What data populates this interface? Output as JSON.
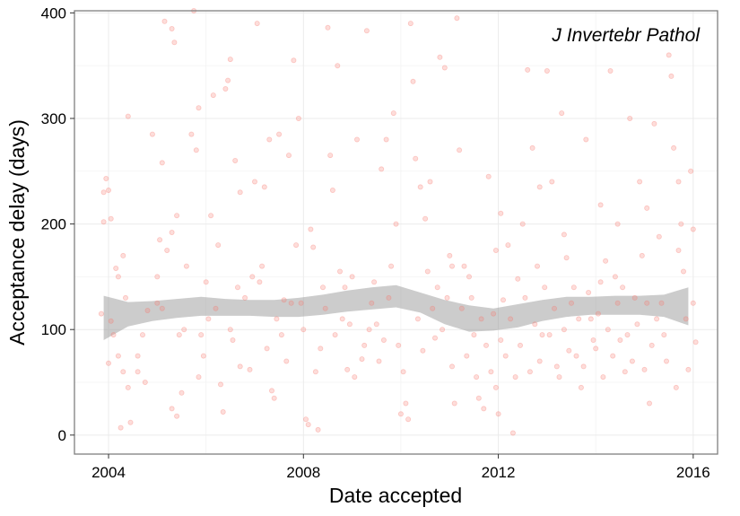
{
  "chart_data": {
    "type": "scatter",
    "title": "",
    "annotation": "J Invertebr Pathol",
    "xlabel": "Date accepted",
    "ylabel": "Acceptance delay (days)",
    "x_axis_kind": "date-year",
    "xlim": [
      2003.3,
      2016.5
    ],
    "ylim": [
      -18,
      402
    ],
    "xticks": [
      2004,
      2008,
      2012,
      2016
    ],
    "yticks": [
      0,
      100,
      200,
      300,
      400
    ],
    "grid": true,
    "point_color": "#F8766D",
    "point_opacity": 0.25,
    "band_color": "#999999",
    "points": [
      [
        2003.9,
        230
      ],
      [
        2003.95,
        243
      ],
      [
        2004.05,
        205
      ],
      [
        2003.9,
        202
      ],
      [
        2004.0,
        232
      ],
      [
        2004.15,
        158
      ],
      [
        2004.2,
        150
      ],
      [
        2004.3,
        170
      ],
      [
        2004.4,
        302
      ],
      [
        2004.05,
        108
      ],
      [
        2003.85,
        115
      ],
      [
        2004.1,
        95
      ],
      [
        2004.2,
        75
      ],
      [
        2004.0,
        68
      ],
      [
        2004.3,
        60
      ],
      [
        2004.4,
        45
      ],
      [
        2004.25,
        7
      ],
      [
        2004.45,
        12
      ],
      [
        2004.6,
        60
      ],
      [
        2004.7,
        95
      ],
      [
        2004.8,
        118
      ],
      [
        2004.9,
        285
      ],
      [
        2005.0,
        150
      ],
      [
        2005.05,
        185
      ],
      [
        2005.1,
        258
      ],
      [
        2005.2,
        175
      ],
      [
        2005.3,
        192
      ],
      [
        2005.15,
        392
      ],
      [
        2005.3,
        385
      ],
      [
        2005.35,
        372
      ],
      [
        2005.4,
        208
      ],
      [
        2005.45,
        95
      ],
      [
        2005.3,
        25
      ],
      [
        2005.4,
        18
      ],
      [
        2005.5,
        40
      ],
      [
        2005.1,
        120
      ],
      [
        2005.0,
        125
      ],
      [
        2005.6,
        160
      ],
      [
        2005.7,
        285
      ],
      [
        2005.75,
        402
      ],
      [
        2005.8,
        270
      ],
      [
        2005.85,
        310
      ],
      [
        2005.9,
        95
      ],
      [
        2005.95,
        75
      ],
      [
        2006.0,
        145
      ],
      [
        2006.1,
        208
      ],
      [
        2006.15,
        322
      ],
      [
        2006.2,
        120
      ],
      [
        2006.3,
        48
      ],
      [
        2006.35,
        22
      ],
      [
        2006.4,
        328
      ],
      [
        2006.45,
        336
      ],
      [
        2006.5,
        356
      ],
      [
        2006.6,
        260
      ],
      [
        2006.7,
        230
      ],
      [
        2006.8,
        130
      ],
      [
        2006.5,
        100
      ],
      [
        2006.7,
        65
      ],
      [
        2006.9,
        62
      ],
      [
        2007.0,
        240
      ],
      [
        2007.05,
        390
      ],
      [
        2007.1,
        145
      ],
      [
        2007.15,
        160
      ],
      [
        2007.2,
        235
      ],
      [
        2007.3,
        280
      ],
      [
        2007.25,
        82
      ],
      [
        2007.35,
        42
      ],
      [
        2007.4,
        35
      ],
      [
        2007.5,
        285
      ],
      [
        2007.6,
        128
      ],
      [
        2007.7,
        265
      ],
      [
        2007.8,
        355
      ],
      [
        2007.9,
        300
      ],
      [
        2007.85,
        180
      ],
      [
        2007.95,
        125
      ],
      [
        2008.0,
        100
      ],
      [
        2008.05,
        15
      ],
      [
        2008.1,
        10
      ],
      [
        2008.15,
        195
      ],
      [
        2008.2,
        178
      ],
      [
        2008.3,
        5
      ],
      [
        2008.35,
        82
      ],
      [
        2008.4,
        140
      ],
      [
        2008.5,
        386
      ],
      [
        2008.55,
        265
      ],
      [
        2008.6,
        232
      ],
      [
        2008.7,
        350
      ],
      [
        2008.75,
        155
      ],
      [
        2008.8,
        110
      ],
      [
        2008.9,
        62
      ],
      [
        2009.0,
        150
      ],
      [
        2009.1,
        280
      ],
      [
        2009.2,
        72
      ],
      [
        2009.25,
        85
      ],
      [
        2009.3,
        383
      ],
      [
        2009.4,
        125
      ],
      [
        2009.5,
        105
      ],
      [
        2009.6,
        252
      ],
      [
        2009.7,
        280
      ],
      [
        2009.8,
        160
      ],
      [
        2009.85,
        305
      ],
      [
        2009.9,
        200
      ],
      [
        2010.0,
        20
      ],
      [
        2010.05,
        60
      ],
      [
        2010.1,
        30
      ],
      [
        2010.15,
        15
      ],
      [
        2010.2,
        390
      ],
      [
        2010.25,
        335
      ],
      [
        2010.3,
        262
      ],
      [
        2010.4,
        235
      ],
      [
        2010.5,
        205
      ],
      [
        2010.55,
        155
      ],
      [
        2010.6,
        240
      ],
      [
        2010.65,
        120
      ],
      [
        2010.7,
        92
      ],
      [
        2010.8,
        358
      ],
      [
        2010.9,
        348
      ],
      [
        2011.0,
        170
      ],
      [
        2011.05,
        65
      ],
      [
        2011.1,
        30
      ],
      [
        2011.15,
        395
      ],
      [
        2011.2,
        270
      ],
      [
        2011.3,
        160
      ],
      [
        2011.4,
        150
      ],
      [
        2011.5,
        95
      ],
      [
        2011.6,
        35
      ],
      [
        2011.7,
        25
      ],
      [
        2011.8,
        245
      ],
      [
        2011.9,
        115
      ],
      [
        2011.95,
        45
      ],
      [
        2012.0,
        20
      ],
      [
        2012.05,
        90
      ],
      [
        2012.1,
        128
      ],
      [
        2012.2,
        180
      ],
      [
        2012.3,
        2
      ],
      [
        2012.4,
        148
      ],
      [
        2012.5,
        200
      ],
      [
        2012.6,
        346
      ],
      [
        2012.7,
        272
      ],
      [
        2012.8,
        160
      ],
      [
        2012.9,
        95
      ],
      [
        2013.0,
        345
      ],
      [
        2013.1,
        240
      ],
      [
        2013.2,
        65
      ],
      [
        2013.3,
        305
      ],
      [
        2013.4,
        168
      ],
      [
        2013.5,
        125
      ],
      [
        2013.6,
        75
      ],
      [
        2013.7,
        45
      ],
      [
        2013.8,
        280
      ],
      [
        2013.9,
        110
      ],
      [
        2014.0,
        82
      ],
      [
        2014.1,
        218
      ],
      [
        2014.2,
        165
      ],
      [
        2014.3,
        345
      ],
      [
        2014.4,
        150
      ],
      [
        2014.5,
        90
      ],
      [
        2014.6,
        60
      ],
      [
        2014.7,
        300
      ],
      [
        2014.8,
        130
      ],
      [
        2014.9,
        240
      ],
      [
        2015.0,
        62
      ],
      [
        2015.1,
        30
      ],
      [
        2015.2,
        295
      ],
      [
        2015.3,
        188
      ],
      [
        2015.4,
        95
      ],
      [
        2015.5,
        360
      ],
      [
        2015.55,
        340
      ],
      [
        2015.6,
        272
      ],
      [
        2015.7,
        240
      ],
      [
        2015.8,
        155
      ],
      [
        2015.85,
        110
      ],
      [
        2015.9,
        62
      ],
      [
        2015.95,
        250
      ],
      [
        2016.0,
        195
      ],
      [
        2016.05,
        88
      ],
      [
        2015.75,
        200
      ],
      [
        2015.65,
        45
      ],
      [
        2015.35,
        125
      ],
      [
        2014.95,
        170
      ],
      [
        2004.6,
        75
      ],
      [
        2004.75,
        50
      ],
      [
        2005.55,
        100
      ],
      [
        2005.85,
        55
      ],
      [
        2006.25,
        180
      ],
      [
        2006.55,
        90
      ],
      [
        2006.95,
        150
      ],
      [
        2007.45,
        110
      ],
      [
        2007.65,
        70
      ],
      [
        2008.25,
        60
      ],
      [
        2008.45,
        120
      ],
      [
        2008.65,
        95
      ],
      [
        2008.85,
        140
      ],
      [
        2009.05,
        55
      ],
      [
        2009.35,
        100
      ],
      [
        2009.55,
        70
      ],
      [
        2009.75,
        130
      ],
      [
        2009.95,
        85
      ],
      [
        2010.35,
        110
      ],
      [
        2010.45,
        80
      ],
      [
        2010.75,
        140
      ],
      [
        2010.85,
        100
      ],
      [
        2011.25,
        120
      ],
      [
        2011.35,
        75
      ],
      [
        2011.45,
        130
      ],
      [
        2011.55,
        55
      ],
      [
        2011.65,
        110
      ],
      [
        2011.75,
        85
      ],
      [
        2011.85,
        60
      ],
      [
        2012.15,
        75
      ],
      [
        2012.25,
        110
      ],
      [
        2012.35,
        55
      ],
      [
        2012.45,
        85
      ],
      [
        2012.55,
        130
      ],
      [
        2012.65,
        60
      ],
      [
        2012.75,
        105
      ],
      [
        2012.85,
        70
      ],
      [
        2012.95,
        140
      ],
      [
        2013.05,
        95
      ],
      [
        2013.15,
        120
      ],
      [
        2013.25,
        55
      ],
      [
        2013.35,
        100
      ],
      [
        2013.45,
        80
      ],
      [
        2013.55,
        140
      ],
      [
        2013.65,
        110
      ],
      [
        2013.75,
        65
      ],
      [
        2013.85,
        135
      ],
      [
        2013.95,
        90
      ],
      [
        2014.05,
        115
      ],
      [
        2014.15,
        55
      ],
      [
        2014.25,
        100
      ],
      [
        2014.35,
        75
      ],
      [
        2014.45,
        125
      ],
      [
        2014.55,
        140
      ],
      [
        2014.65,
        95
      ],
      [
        2014.75,
        70
      ],
      [
        2014.85,
        105
      ],
      [
        2015.05,
        125
      ],
      [
        2015.15,
        85
      ],
      [
        2015.25,
        110
      ],
      [
        2015.45,
        70
      ],
      [
        2016.0,
        125
      ],
      [
        2004.35,
        130
      ],
      [
        2006.05,
        110
      ],
      [
        2006.65,
        140
      ],
      [
        2007.55,
        95
      ],
      [
        2007.75,
        125
      ],
      [
        2008.95,
        105
      ],
      [
        2009.45,
        145
      ],
      [
        2009.65,
        90
      ],
      [
        2010.95,
        130
      ],
      [
        2011.05,
        160
      ],
      [
        2011.95,
        175
      ],
      [
        2012.05,
        210
      ],
      [
        2012.85,
        235
      ],
      [
        2013.35,
        190
      ],
      [
        2014.1,
        145
      ],
      [
        2014.45,
        200
      ],
      [
        2015.05,
        215
      ],
      [
        2015.7,
        175
      ]
    ],
    "smooth": {
      "x": [
        2003.9,
        2004.4,
        2004.9,
        2005.4,
        2005.9,
        2006.4,
        2006.9,
        2007.4,
        2007.9,
        2008.4,
        2008.9,
        2009.4,
        2009.9,
        2010.4,
        2010.9,
        2011.4,
        2011.9,
        2012.4,
        2012.9,
        2013.4,
        2013.9,
        2014.4,
        2014.9,
        2015.4,
        2015.9
      ],
      "lower": [
        90,
        103,
        108,
        111,
        113,
        113,
        113,
        112,
        112,
        114,
        117,
        119,
        121,
        116,
        105,
        98,
        99,
        102,
        108,
        112,
        114,
        114,
        114,
        112,
        104
      ],
      "upper": [
        132,
        126,
        127,
        129,
        131,
        129,
        128,
        128,
        130,
        133,
        137,
        140,
        142,
        135,
        128,
        123,
        120,
        124,
        128,
        131,
        131,
        132,
        132,
        133,
        140
      ]
    }
  }
}
